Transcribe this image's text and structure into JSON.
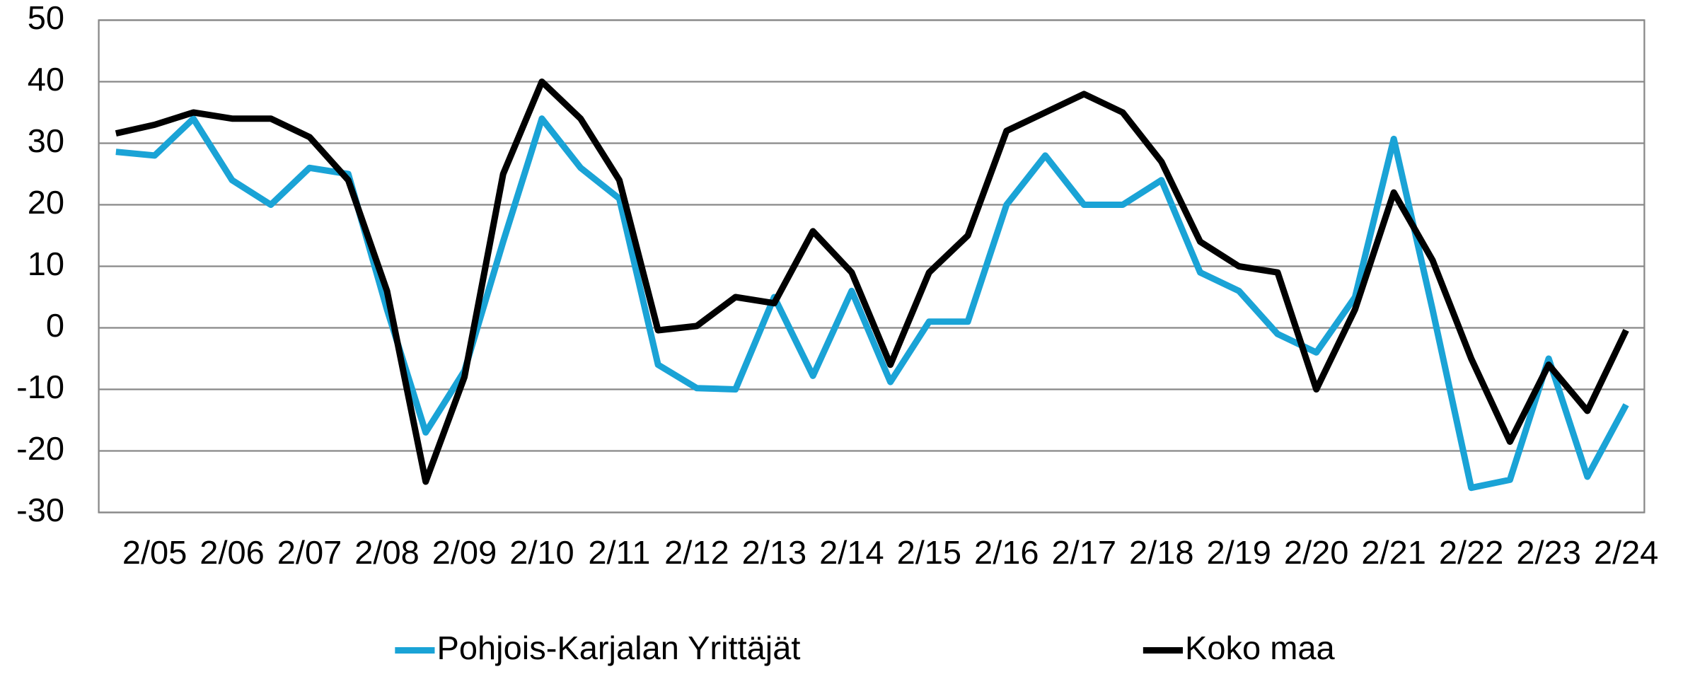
{
  "chart_data": {
    "type": "line",
    "categories": [
      null,
      "2/05",
      null,
      "2/06",
      null,
      "2/07",
      null,
      "2/08",
      null,
      "2/09",
      null,
      "2/10",
      null,
      "2/11",
      null,
      "2/12",
      null,
      "2/13",
      null,
      "2/14",
      null,
      "2/15",
      null,
      "2/16",
      null,
      "2/17",
      null,
      "2/18",
      null,
      "2/19",
      null,
      "2/20",
      null,
      "2/21",
      null,
      "2/22",
      null,
      "2/23",
      null,
      "2/24"
    ],
    "series": [
      {
        "name": "Pohjois-Karjalan Yrittäjät",
        "color": "#1aa3d6",
        "values": [
          28.6,
          28,
          34,
          24,
          20,
          26,
          25,
          3,
          -17,
          -7,
          14,
          34,
          26,
          21,
          -6,
          -9.8,
          -10,
          5,
          -7.8,
          6,
          -8.8,
          1,
          1,
          20,
          28,
          20,
          20,
          24,
          9,
          6,
          -1,
          -4,
          5,
          30.7,
          3,
          -26,
          -24.7,
          -5,
          -24.2,
          -12.5
        ]
      },
      {
        "name": "Koko maa",
        "color": "#000000",
        "values": [
          31.6,
          33,
          35,
          34,
          34,
          31,
          24,
          6,
          -25,
          -8,
          25,
          40,
          34,
          24,
          -0.4,
          0.3,
          5,
          4,
          15.7,
          9,
          -6,
          9,
          15,
          32,
          35,
          38,
          35,
          27,
          14,
          10,
          9,
          -10,
          3,
          22,
          11,
          -5,
          -18.5,
          -6,
          -13.5,
          -0.4
        ]
      }
    ],
    "ylim": [
      -30,
      50
    ],
    "yticks": [
      -30,
      -20,
      -10,
      0,
      10,
      20,
      30,
      40,
      50
    ],
    "grid": true,
    "legend": "bottom"
  }
}
